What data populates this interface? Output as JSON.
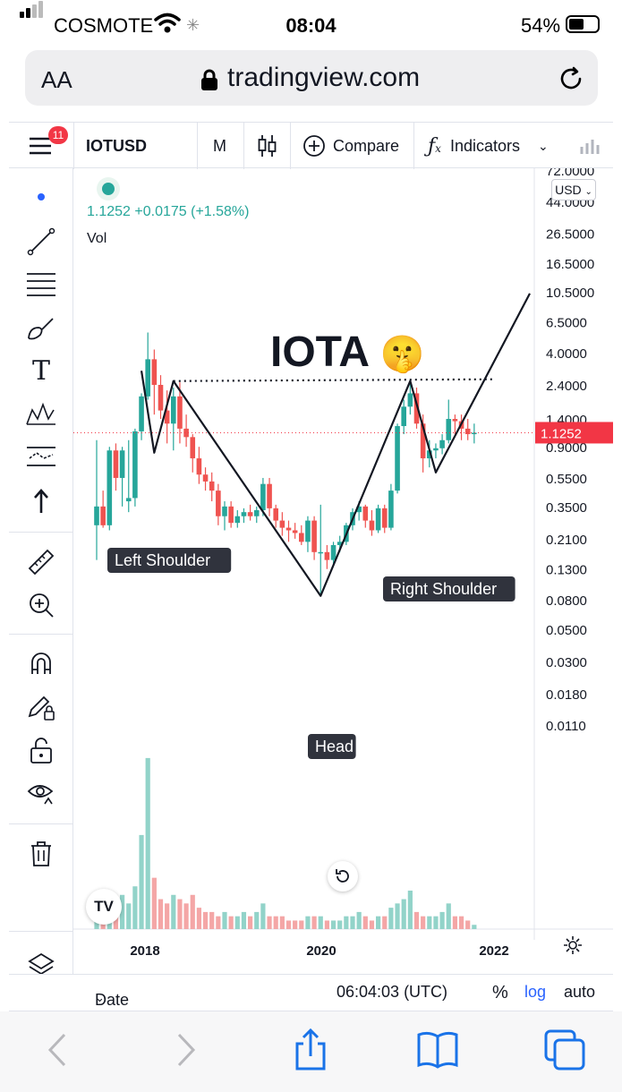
{
  "status_bar": {
    "carrier": "COSMOTE",
    "time": "08:04",
    "battery": "54%"
  },
  "browser": {
    "text_size_label": "AA",
    "url": "tradingview.com"
  },
  "header": {
    "notification_count": "11",
    "symbol": "IOTUSD",
    "interval": "M",
    "compare_label": "Compare",
    "indicators_label": "Indicators"
  },
  "legend": {
    "values": "1.1252 +0.0175 (+1.58%)",
    "volume_label": "Vol",
    "currency": "USD"
  },
  "annotations": {
    "title": "IOTA",
    "emoji": "🤫",
    "left_shoulder": "Left Shoulder",
    "head": "Head",
    "right_shoulder": "Right Shoulder"
  },
  "chart_data": {
    "type": "candlestick",
    "symbol": "IOTUSD",
    "interval": "M",
    "last_price": "1.1252",
    "price_axis_labels": [
      "72.0000",
      "44.0000",
      "26.5000",
      "16.5000",
      "10.5000",
      "6.5000",
      "4.0000",
      "2.4000",
      "1.4000",
      "0.9000",
      "0.5500",
      "0.3500",
      "0.2100",
      "0.1300",
      "0.0800",
      "0.0500",
      "0.0300",
      "0.0180",
      "0.0110"
    ],
    "price_axis_values": [
      72,
      44,
      26.5,
      16.5,
      10.5,
      6.5,
      4,
      2.4,
      1.4,
      0.9,
      0.55,
      0.35,
      0.21,
      0.13,
      0.08,
      0.05,
      0.03,
      0.018,
      0.011
    ],
    "time_axis_labels": [
      "2018",
      "2020",
      "2022"
    ],
    "scale": "log",
    "colors": {
      "up": "#26a69a",
      "down": "#ef5350",
      "vol_up": "#92d3c9",
      "vol_down": "#f4a6a6",
      "last_price": "#f23645"
    },
    "candles": [
      {
        "o": 0.26,
        "h": 1.0,
        "l": 0.15,
        "c": 0.35
      },
      {
        "o": 0.35,
        "h": 0.45,
        "l": 0.25,
        "c": 0.26
      },
      {
        "o": 0.26,
        "h": 0.9,
        "l": 0.24,
        "c": 0.85
      },
      {
        "o": 0.85,
        "h": 0.95,
        "l": 0.45,
        "c": 0.55
      },
      {
        "o": 0.55,
        "h": 0.9,
        "l": 0.35,
        "c": 0.85
      },
      {
        "o": 0.38,
        "h": 1.0,
        "l": 0.32,
        "c": 0.4
      },
      {
        "o": 0.4,
        "h": 1.2,
        "l": 0.35,
        "c": 1.15
      },
      {
        "o": 1.15,
        "h": 2.1,
        "l": 1.0,
        "c": 2.0
      },
      {
        "o": 2.0,
        "h": 5.5,
        "l": 1.9,
        "c": 3.6
      },
      {
        "o": 3.6,
        "h": 4.2,
        "l": 1.5,
        "c": 2.4
      },
      {
        "o": 2.4,
        "h": 2.8,
        "l": 1.4,
        "c": 1.6
      },
      {
        "o": 1.6,
        "h": 2.2,
        "l": 0.95,
        "c": 1.3
      },
      {
        "o": 1.3,
        "h": 2.3,
        "l": 0.85,
        "c": 2.0
      },
      {
        "o": 2.0,
        "h": 2.5,
        "l": 0.95,
        "c": 1.2
      },
      {
        "o": 1.2,
        "h": 1.5,
        "l": 0.9,
        "c": 1.05
      },
      {
        "o": 1.05,
        "h": 1.1,
        "l": 0.6,
        "c": 0.75
      },
      {
        "o": 0.75,
        "h": 0.9,
        "l": 0.5,
        "c": 0.58
      },
      {
        "o": 0.58,
        "h": 0.65,
        "l": 0.45,
        "c": 0.52
      },
      {
        "o": 0.52,
        "h": 0.6,
        "l": 0.38,
        "c": 0.45
      },
      {
        "o": 0.45,
        "h": 0.5,
        "l": 0.26,
        "c": 0.3
      },
      {
        "o": 0.3,
        "h": 0.38,
        "l": 0.24,
        "c": 0.35
      },
      {
        "o": 0.35,
        "h": 0.38,
        "l": 0.25,
        "c": 0.27
      },
      {
        "o": 0.27,
        "h": 0.33,
        "l": 0.25,
        "c": 0.3
      },
      {
        "o": 0.3,
        "h": 0.34,
        "l": 0.27,
        "c": 0.32
      },
      {
        "o": 0.32,
        "h": 0.36,
        "l": 0.28,
        "c": 0.3
      },
      {
        "o": 0.3,
        "h": 0.35,
        "l": 0.27,
        "c": 0.33
      },
      {
        "o": 0.33,
        "h": 0.55,
        "l": 0.3,
        "c": 0.5
      },
      {
        "o": 0.5,
        "h": 0.55,
        "l": 0.3,
        "c": 0.34
      },
      {
        "o": 0.34,
        "h": 0.36,
        "l": 0.25,
        "c": 0.28
      },
      {
        "o": 0.28,
        "h": 0.32,
        "l": 0.22,
        "c": 0.25
      },
      {
        "o": 0.25,
        "h": 0.28,
        "l": 0.2,
        "c": 0.24
      },
      {
        "o": 0.24,
        "h": 0.27,
        "l": 0.21,
        "c": 0.23
      },
      {
        "o": 0.23,
        "h": 0.26,
        "l": 0.19,
        "c": 0.2
      },
      {
        "o": 0.2,
        "h": 0.3,
        "l": 0.17,
        "c": 0.28
      },
      {
        "o": 0.28,
        "h": 0.3,
        "l": 0.15,
        "c": 0.17
      },
      {
        "o": 0.17,
        "h": 0.36,
        "l": 0.085,
        "c": 0.17
      },
      {
        "o": 0.17,
        "h": 0.19,
        "l": 0.13,
        "c": 0.15
      },
      {
        "o": 0.15,
        "h": 0.2,
        "l": 0.14,
        "c": 0.19
      },
      {
        "o": 0.19,
        "h": 0.22,
        "l": 0.17,
        "c": 0.2
      },
      {
        "o": 0.2,
        "h": 0.27,
        "l": 0.19,
        "c": 0.26
      },
      {
        "o": 0.26,
        "h": 0.34,
        "l": 0.24,
        "c": 0.32
      },
      {
        "o": 0.32,
        "h": 0.38,
        "l": 0.28,
        "c": 0.35
      },
      {
        "o": 0.35,
        "h": 0.36,
        "l": 0.25,
        "c": 0.28
      },
      {
        "o": 0.28,
        "h": 0.33,
        "l": 0.22,
        "c": 0.24
      },
      {
        "o": 0.24,
        "h": 0.36,
        "l": 0.23,
        "c": 0.34
      },
      {
        "o": 0.34,
        "h": 0.36,
        "l": 0.23,
        "c": 0.25
      },
      {
        "o": 0.25,
        "h": 0.5,
        "l": 0.24,
        "c": 0.45
      },
      {
        "o": 0.45,
        "h": 1.3,
        "l": 0.43,
        "c": 1.25
      },
      {
        "o": 1.25,
        "h": 1.9,
        "l": 1.1,
        "c": 1.7
      },
      {
        "o": 1.7,
        "h": 2.6,
        "l": 1.5,
        "c": 2.1
      },
      {
        "o": 2.1,
        "h": 2.3,
        "l": 1.2,
        "c": 1.3
      },
      {
        "o": 1.3,
        "h": 1.5,
        "l": 0.6,
        "c": 0.75
      },
      {
        "o": 0.75,
        "h": 1.0,
        "l": 0.65,
        "c": 0.85
      },
      {
        "o": 0.85,
        "h": 0.95,
        "l": 0.75,
        "c": 0.88
      },
      {
        "o": 0.88,
        "h": 1.1,
        "l": 0.8,
        "c": 1.0
      },
      {
        "o": 1.0,
        "h": 1.9,
        "l": 0.95,
        "c": 1.4
      },
      {
        "o": 1.4,
        "h": 1.5,
        "l": 1.1,
        "c": 1.35
      },
      {
        "o": 1.35,
        "h": 1.5,
        "l": 1.0,
        "c": 1.2
      },
      {
        "o": 1.2,
        "h": 1.4,
        "l": 1.0,
        "c": 1.1
      },
      {
        "o": 1.1,
        "h": 1.3,
        "l": 0.95,
        "c": 1.1252
      }
    ],
    "volume": [
      6,
      5,
      7,
      4,
      8,
      6,
      10,
      22,
      40,
      12,
      7,
      6,
      8,
      7,
      6,
      8,
      5,
      4,
      4,
      3,
      4,
      3,
      3,
      4,
      3,
      4,
      6,
      3,
      3,
      3,
      2,
      2,
      2,
      3,
      3,
      3,
      2,
      2,
      2,
      3,
      3,
      4,
      3,
      2,
      3,
      3,
      5,
      6,
      7,
      9,
      4,
      3,
      3,
      3,
      4,
      6,
      3,
      3,
      2,
      1
    ],
    "volume_scale_max": 45,
    "annotation_points": {
      "left_shoulder": [
        {
          "i": 9,
          "p": 0.82
        }
      ],
      "head": [
        {
          "i": 35,
          "p": 0.085
        }
      ],
      "right_shoulder": [
        {
          "i": 53,
          "p": 0.6
        }
      ],
      "neckline_price": 2.55
    }
  },
  "bottom_bar": {
    "date_range_label": "Date Range",
    "clock": "06:04:03 (UTC)",
    "percent_label": "%",
    "log_label": "log",
    "auto_label": "auto"
  }
}
